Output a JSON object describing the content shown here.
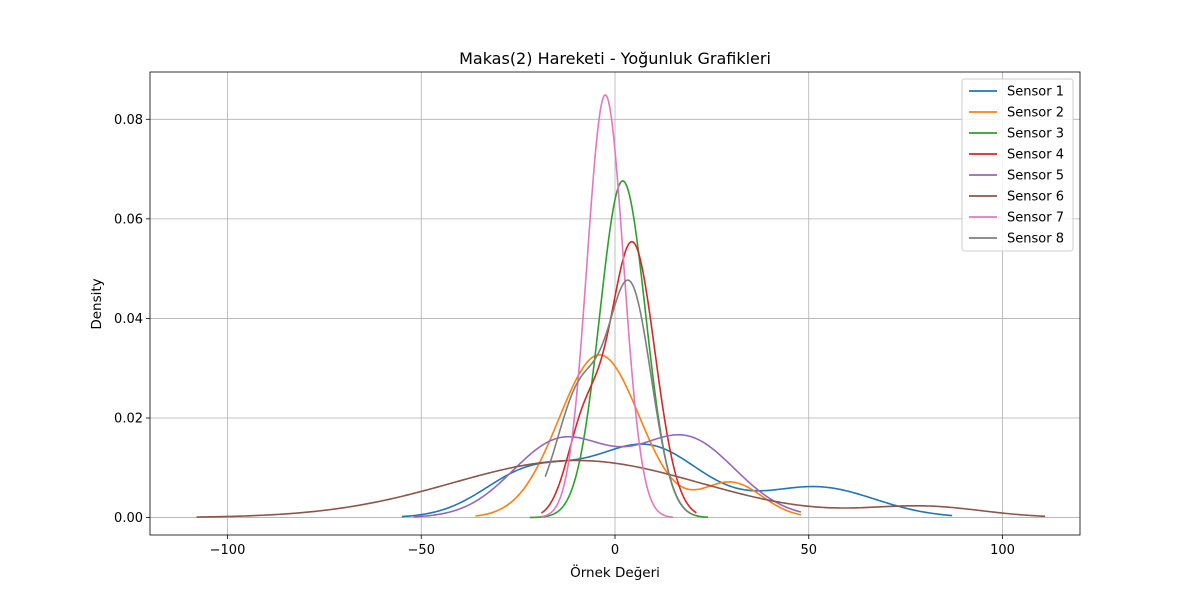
{
  "chart_data": {
    "type": "line",
    "title": "Makas(2) Hareketi - Yoğunluk Grafikleri",
    "xlabel": "Örnek Değeri",
    "ylabel": "Density",
    "xlim": [
      -120,
      120
    ],
    "ylim": [
      -0.0035,
      0.0895
    ],
    "xticks": [
      -100,
      -50,
      0,
      50,
      100
    ],
    "xtick_labels": [
      "−100",
      "−50",
      "0",
      "50",
      "100"
    ],
    "yticks": [
      0.0,
      0.02,
      0.04,
      0.06,
      0.08
    ],
    "ytick_labels": [
      "0.00",
      "0.02",
      "0.04",
      "0.06",
      "0.08"
    ],
    "grid": true,
    "legend_position": "top-right",
    "series": [
      {
        "name": "Sensor 1",
        "color": "#1f77b4",
        "components": [
          {
            "w": 0.27,
            "mu": -22,
            "s": 12
          },
          {
            "w": 0.5,
            "mu": 8,
            "s": 14
          },
          {
            "w": 0.23,
            "mu": 52,
            "s": 15
          }
        ],
        "x_range": [
          -55,
          87
        ]
      },
      {
        "name": "Sensor 2",
        "color": "#ff7f0e",
        "components": [
          {
            "w": 0.86,
            "mu": -4,
            "s": 10.5
          },
          {
            "w": 0.14,
            "mu": 30,
            "s": 8
          }
        ],
        "x_range": [
          -36,
          48
        ]
      },
      {
        "name": "Sensor 3",
        "color": "#2ca02c",
        "components": [
          {
            "w": 1.0,
            "mu": 2,
            "s": 5.9
          }
        ],
        "x_range": [
          -22,
          24
        ]
      },
      {
        "name": "Sensor 4",
        "color": "#d62728",
        "components": [
          {
            "w": 0.8,
            "mu": 4.5,
            "s": 5.8
          },
          {
            "w": 0.2,
            "mu": -8,
            "s": 4.5
          }
        ],
        "x_range": [
          -19,
          21
        ]
      },
      {
        "name": "Sensor 5",
        "color": "#9467bd",
        "components": [
          {
            "w": 0.48,
            "mu": -14,
            "s": 12.5
          },
          {
            "w": 0.52,
            "mu": 18,
            "s": 13
          }
        ],
        "x_range": [
          -52,
          48
        ]
      },
      {
        "name": "Sensor 6",
        "color": "#8c564b",
        "components": [
          {
            "w": 0.92,
            "mu": -10,
            "s": 32
          },
          {
            "w": 0.08,
            "mu": 80,
            "s": 15
          }
        ],
        "x_range": [
          -108,
          111
        ]
      },
      {
        "name": "Sensor 7",
        "color": "#e377c2",
        "components": [
          {
            "w": 1.0,
            "mu": -2.5,
            "s": 4.7
          }
        ],
        "x_range": [
          -19,
          15
        ]
      },
      {
        "name": "Sensor 8",
        "color": "#7f7f7f",
        "components": [
          {
            "w": 0.62,
            "mu": 4,
            "s": 5.5
          },
          {
            "w": 0.38,
            "mu": -9,
            "s": 6
          }
        ],
        "x_range": [
          -18,
          20
        ]
      }
    ]
  }
}
